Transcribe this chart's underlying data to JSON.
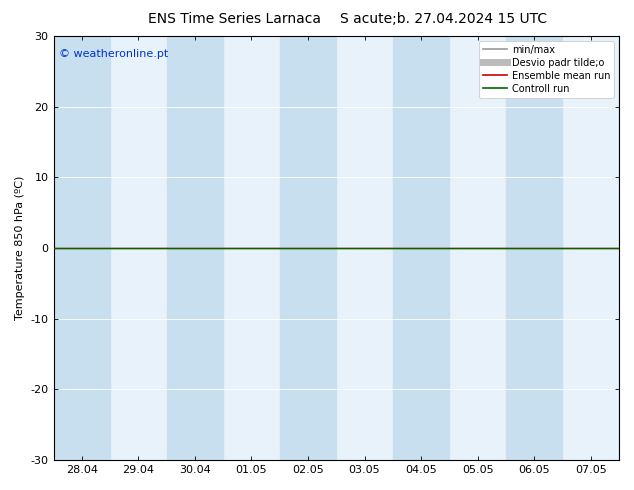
{
  "title_left": "ENS Time Series Larnaca",
  "title_right": "S acute;b. 27.04.2024 15 UTC",
  "ylabel": "Temperature 850 hPa (ºC)",
  "ylim": [
    -30,
    30
  ],
  "yticks": [
    -30,
    -20,
    -10,
    0,
    10,
    20,
    30
  ],
  "xtick_labels": [
    "28.04",
    "29.04",
    "30.04",
    "01.05",
    "02.05",
    "03.05",
    "04.05",
    "05.05",
    "06.05",
    "07.05"
  ],
  "background_color": "#ffffff",
  "col_dark": "#c8dff0",
  "col_light": "#e8f2fb",
  "watermark": "© weatheronline.pt",
  "legend_items": [
    {
      "label": "min/max",
      "color": "#999999",
      "lw": 1.2
    },
    {
      "label": "Desvio padr tilde;o",
      "color": "#bbbbbb",
      "lw": 5
    },
    {
      "label": "Ensemble mean run",
      "color": "#cc0000",
      "lw": 1.2
    },
    {
      "label": "Controll run",
      "color": "#006600",
      "lw": 1.2
    }
  ],
  "zero_line_color": "#004400",
  "controll_run_color": "#006600",
  "ensemble_mean_color": "#cc0000",
  "grid_color": "#ffffff",
  "tick_color": "#000000",
  "spine_color": "#000000"
}
